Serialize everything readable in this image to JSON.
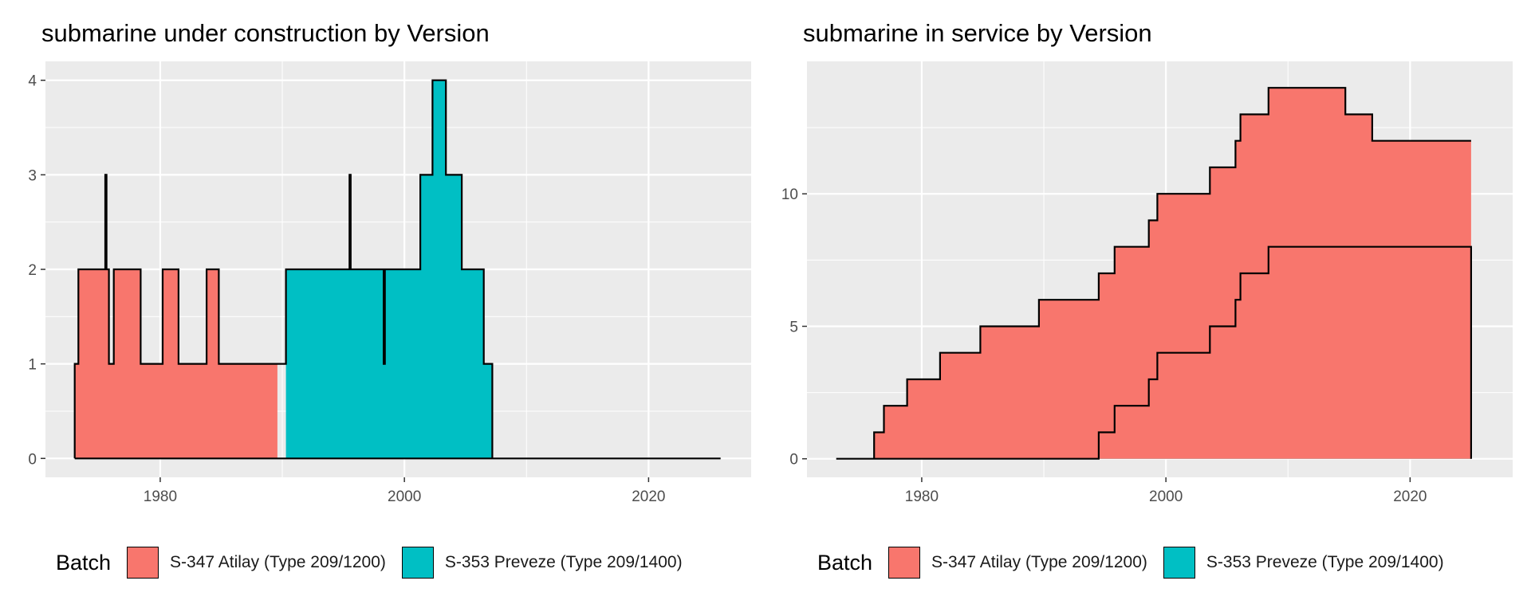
{
  "colors": {
    "atilay": "#F8766D",
    "preveze": "#00BFC4",
    "panel_bg": "#EBEBEB",
    "grid": "#FFFFFF",
    "tick_text": "#4D4D4D"
  },
  "legend": {
    "title": "Batch",
    "items": [
      {
        "label": "S-347 Atilay (Type 209/1200)",
        "color": "#F8766D"
      },
      {
        "label": "S-353 Preveze (Type 209/1400)",
        "color": "#00BFC4"
      }
    ]
  },
  "chart_data": [
    {
      "type": "area",
      "stacked": true,
      "step": true,
      "title": "submarine under construction by Version",
      "xlabel": "",
      "ylabel": "",
      "xlim": [
        1970.6,
        2028.4
      ],
      "ylim": [
        -0.2,
        4.2
      ],
      "xticks": [
        1980,
        2000,
        2020
      ],
      "yticks": [
        0,
        1,
        2,
        3,
        4
      ],
      "grid": true,
      "legend_position": "bottom",
      "series": [
        {
          "name": "S-347 Atilay (Type 209/1200)",
          "points": [
            [
              1973.0,
              0
            ],
            [
              1973.0,
              1
            ],
            [
              1973.3,
              1
            ],
            [
              1973.3,
              2
            ],
            [
              1975.5,
              2
            ],
            [
              1975.5,
              3
            ],
            [
              1975.6,
              3
            ],
            [
              1975.6,
              2
            ],
            [
              1975.8,
              2
            ],
            [
              1975.8,
              1
            ],
            [
              1976.2,
              1
            ],
            [
              1976.2,
              2
            ],
            [
              1978.4,
              2
            ],
            [
              1978.4,
              1
            ],
            [
              1980.2,
              1
            ],
            [
              1980.2,
              2
            ],
            [
              1981.5,
              2
            ],
            [
              1981.5,
              1
            ],
            [
              1983.8,
              1
            ],
            [
              1983.8,
              2
            ],
            [
              1984.8,
              2
            ],
            [
              1984.8,
              1
            ],
            [
              1989.6,
              1
            ],
            [
              1989.6,
              0
            ]
          ]
        },
        {
          "name": "S-353 Preveze (Type 209/1400)",
          "points": [
            [
              1989.6,
              0
            ],
            [
              1990.3,
              0
            ],
            [
              1990.3,
              2
            ],
            [
              1995.5,
              2
            ],
            [
              1995.5,
              3
            ],
            [
              1995.6,
              3
            ],
            [
              1995.6,
              2
            ],
            [
              1998.3,
              2
            ],
            [
              1998.3,
              1
            ],
            [
              1998.4,
              1
            ],
            [
              1998.4,
              2
            ],
            [
              2001.3,
              2
            ],
            [
              2001.3,
              3
            ],
            [
              2002.3,
              3
            ],
            [
              2002.3,
              4
            ],
            [
              2003.4,
              4
            ],
            [
              2003.4,
              3
            ],
            [
              2004.7,
              3
            ],
            [
              2004.7,
              2
            ],
            [
              2006.5,
              2
            ],
            [
              2006.5,
              1
            ],
            [
              2007.2,
              1
            ],
            [
              2007.2,
              0
            ]
          ]
        }
      ],
      "outline": [
        [
          1973.0,
          0
        ],
        [
          1973.0,
          1
        ],
        [
          1973.3,
          1
        ],
        [
          1973.3,
          2
        ],
        [
          1975.5,
          2
        ],
        [
          1975.5,
          3
        ],
        [
          1975.6,
          3
        ],
        [
          1975.6,
          2
        ],
        [
          1975.8,
          2
        ],
        [
          1975.8,
          1
        ],
        [
          1976.2,
          1
        ],
        [
          1976.2,
          2
        ],
        [
          1978.4,
          2
        ],
        [
          1978.4,
          1
        ],
        [
          1980.2,
          1
        ],
        [
          1980.2,
          2
        ],
        [
          1981.5,
          2
        ],
        [
          1981.5,
          1
        ],
        [
          1983.8,
          1
        ],
        [
          1983.8,
          2
        ],
        [
          1984.8,
          2
        ],
        [
          1984.8,
          1
        ],
        [
          1989.6,
          1
        ],
        [
          1990.3,
          1
        ],
        [
          1990.3,
          2
        ],
        [
          1995.5,
          2
        ],
        [
          1995.5,
          3
        ],
        [
          1995.6,
          3
        ],
        [
          1995.6,
          2
        ],
        [
          1998.3,
          2
        ],
        [
          1998.3,
          1
        ],
        [
          1998.4,
          1
        ],
        [
          1998.4,
          2
        ],
        [
          2001.3,
          2
        ],
        [
          2001.3,
          3
        ],
        [
          2002.3,
          3
        ],
        [
          2002.3,
          4
        ],
        [
          2003.4,
          4
        ],
        [
          2003.4,
          3
        ],
        [
          2004.7,
          3
        ],
        [
          2004.7,
          2
        ],
        [
          2006.5,
          2
        ],
        [
          2006.5,
          1
        ],
        [
          2007.2,
          1
        ],
        [
          2007.2,
          0
        ],
        [
          2025.9,
          0
        ],
        [
          1973.0,
          0
        ]
      ]
    },
    {
      "type": "area",
      "stacked": true,
      "step": true,
      "title": "submarine in service by Version",
      "xlabel": "",
      "ylabel": "",
      "xlim": [
        1970.6,
        2028.4
      ],
      "ylim": [
        -0.7,
        15.0
      ],
      "xticks": [
        1980,
        2000,
        2020
      ],
      "yticks": [
        0,
        5,
        10
      ],
      "grid": true,
      "legend_position": "bottom",
      "series": [
        {
          "name": "S-353 Preveze (Type 209/1400)",
          "points": [
            [
              1994.5,
              0
            ],
            [
              1994.5,
              1
            ],
            [
              1995.8,
              1
            ],
            [
              1995.8,
              2
            ],
            [
              1998.6,
              2
            ],
            [
              1998.6,
              3
            ],
            [
              1999.3,
              3
            ],
            [
              1999.3,
              4
            ],
            [
              2003.6,
              4
            ],
            [
              2003.6,
              5
            ],
            [
              2005.7,
              5
            ],
            [
              2005.7,
              6
            ],
            [
              2006.1,
              6
            ],
            [
              2006.1,
              7
            ],
            [
              2008.4,
              7
            ],
            [
              2008.4,
              8
            ],
            [
              2025.0,
              8
            ],
            [
              2025.0,
              0
            ]
          ]
        },
        {
          "name": "S-347 Atilay (Type 209/1200)",
          "points": [
            [
              1976.1,
              0
            ],
            [
              1976.1,
              1
            ],
            [
              1976.9,
              1
            ],
            [
              1976.9,
              2
            ],
            [
              1978.8,
              2
            ],
            [
              1978.8,
              3
            ],
            [
              1981.5,
              3
            ],
            [
              1981.5,
              4
            ],
            [
              1984.8,
              4
            ],
            [
              1984.8,
              5
            ],
            [
              1989.6,
              5
            ],
            [
              1989.6,
              6
            ],
            [
              1994.5,
              6
            ],
            [
              1994.5,
              7
            ],
            [
              1995.8,
              7
            ],
            [
              1995.8,
              8
            ],
            [
              1998.6,
              8
            ],
            [
              1998.6,
              9
            ],
            [
              1999.3,
              9
            ],
            [
              1999.3,
              10
            ],
            [
              2003.6,
              10
            ],
            [
              2003.6,
              11
            ],
            [
              2005.7,
              11
            ],
            [
              2005.7,
              12
            ],
            [
              2006.1,
              12
            ],
            [
              2006.1,
              13
            ],
            [
              2008.4,
              13
            ],
            [
              2008.4,
              14
            ],
            [
              2014.7,
              14
            ],
            [
              2014.7,
              13
            ],
            [
              2016.9,
              13
            ],
            [
              2016.9,
              12
            ],
            [
              2025.0,
              12
            ],
            [
              2025.0,
              0
            ]
          ]
        }
      ],
      "lower_outline": [
        [
          1973.0,
          0
        ],
        [
          1994.5,
          0
        ],
        [
          1994.5,
          1
        ],
        [
          1995.8,
          1
        ],
        [
          1995.8,
          2
        ],
        [
          1998.6,
          2
        ],
        [
          1998.6,
          3
        ],
        [
          1999.3,
          3
        ],
        [
          1999.3,
          4
        ],
        [
          2003.6,
          4
        ],
        [
          2003.6,
          5
        ],
        [
          2005.7,
          5
        ],
        [
          2005.7,
          6
        ],
        [
          2006.1,
          6
        ],
        [
          2006.1,
          7
        ],
        [
          2008.4,
          7
        ],
        [
          2008.4,
          8
        ],
        [
          2025.0,
          8
        ],
        [
          2025.0,
          0
        ]
      ]
    }
  ]
}
